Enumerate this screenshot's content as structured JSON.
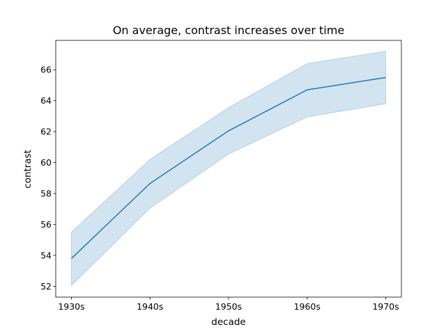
{
  "chart_data": {
    "type": "line",
    "title": "On average, contrast increases over time",
    "xlabel": "decade",
    "ylabel": "contrast",
    "categories": [
      "1930s",
      "1940s",
      "1950s",
      "1960s",
      "1970s"
    ],
    "series": [
      {
        "values": [
          53.8,
          58.65,
          62.05,
          64.7,
          65.5
        ],
        "ci_lower": [
          52.05,
          57.05,
          60.55,
          62.95,
          63.8
        ],
        "ci_upper": [
          55.5,
          60.2,
          63.55,
          66.4,
          67.2
        ]
      }
    ],
    "yticks": [
      52,
      54,
      56,
      58,
      60,
      62,
      64,
      66
    ],
    "ylim": [
      51.3,
      67.9
    ],
    "grid": false,
    "legend": "none",
    "colors": {
      "line": "#1f77b4",
      "band": "#1f77b4"
    }
  }
}
